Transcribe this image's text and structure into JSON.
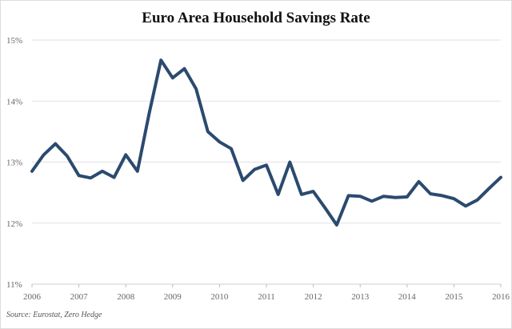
{
  "chart_data": {
    "type": "line",
    "title": "Euro Area Household Savings Rate",
    "source": "Source: Eurostat, Zero Hedge",
    "xlabel": "",
    "ylabel": "",
    "xlim": [
      2006.0,
      2016.0
    ],
    "ylim": [
      11,
      15
    ],
    "grid": true,
    "legend": "none",
    "x_ticks": [
      2006,
      2007,
      2008,
      2009,
      2010,
      2011,
      2012,
      2013,
      2014,
      2015,
      2016
    ],
    "y_ticks": [
      11,
      12,
      13,
      14,
      15
    ],
    "y_tick_labels": [
      "11%",
      "12%",
      "13%",
      "14%",
      "15%"
    ],
    "line_color": "#2b4a6f",
    "series": [
      {
        "x": [
          2006.0,
          2006.25,
          2006.5,
          2006.75,
          2007.0,
          2007.25,
          2007.5,
          2007.75,
          2008.0,
          2008.25,
          2008.5,
          2008.75,
          2009.0,
          2009.25,
          2009.5,
          2009.75,
          2010.0,
          2010.25,
          2010.5,
          2010.75,
          2011.0,
          2011.25,
          2011.5,
          2011.75,
          2012.0,
          2012.25,
          2012.5,
          2012.75,
          2013.0,
          2013.25,
          2013.5,
          2013.75,
          2014.0,
          2014.25,
          2014.5,
          2014.75,
          2015.0,
          2015.25,
          2015.5,
          2015.75,
          2016.0
        ],
        "values": [
          12.85,
          13.12,
          13.3,
          13.1,
          12.78,
          12.74,
          12.85,
          12.75,
          13.12,
          12.85,
          13.8,
          14.67,
          14.38,
          14.53,
          14.2,
          13.5,
          13.33,
          13.22,
          12.7,
          12.88,
          12.95,
          12.47,
          13.0,
          12.47,
          12.52,
          12.25,
          11.97,
          12.45,
          12.44,
          12.36,
          12.44,
          12.42,
          12.43,
          12.68,
          12.48,
          12.45,
          12.4,
          12.28,
          12.38,
          12.57,
          12.75
        ]
      }
    ]
  }
}
